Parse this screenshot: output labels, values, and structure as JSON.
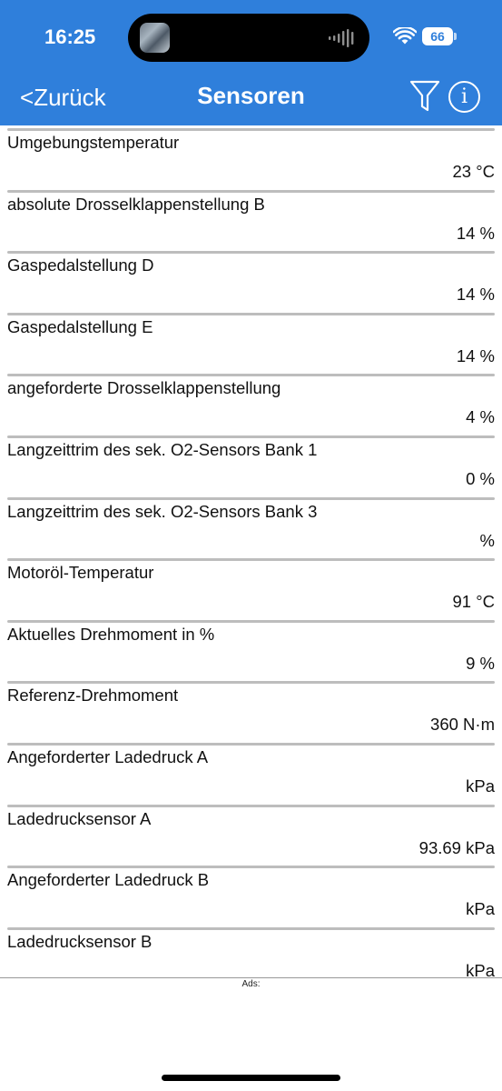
{
  "status_bar": {
    "time": "16:25",
    "battery": "66",
    "icons": [
      "island-thumbnail-icon",
      "audio-wave-icon",
      "wifi-icon",
      "battery-icon"
    ]
  },
  "nav": {
    "back_label": "<Zurück",
    "title": "Sensoren",
    "filter_icon": "filter-icon",
    "info_label": "i"
  },
  "sensors": [
    {
      "label": "Umgebungstemperatur",
      "value": "23 °C"
    },
    {
      "label": "absolute Drosselklappenstellung B",
      "value": "14 %"
    },
    {
      "label": "Gaspedalstellung D",
      "value": "14 %"
    },
    {
      "label": "Gaspedalstellung E",
      "value": "14 %"
    },
    {
      "label": "angeforderte Drosselklappenstellung",
      "value": "4 %"
    },
    {
      "label": "Langzeittrim des sek. O2-Sensors Bank 1",
      "value": "0 %"
    },
    {
      "label": "Langzeittrim des sek. O2-Sensors Bank 3",
      "value": "%"
    },
    {
      "label": "Motoröl-Temperatur",
      "value": "91 °C"
    },
    {
      "label": "Aktuelles Drehmoment in %",
      "value": "9 %"
    },
    {
      "label": "Referenz-Drehmoment",
      "value": "360 N·m"
    },
    {
      "label": "Angeforderter Ladedruck A",
      "value": "kPa"
    },
    {
      "label": "Ladedrucksensor A",
      "value": "93.69 kPa"
    },
    {
      "label": "Angeforderter Ladedruck B",
      "value": "kPa"
    },
    {
      "label": "Ladedrucksensor B",
      "value": "kPa"
    }
  ],
  "ads": {
    "label": "Ads:"
  },
  "colors": {
    "header": "#2f7fdb",
    "separator": "#bdbdbd"
  }
}
